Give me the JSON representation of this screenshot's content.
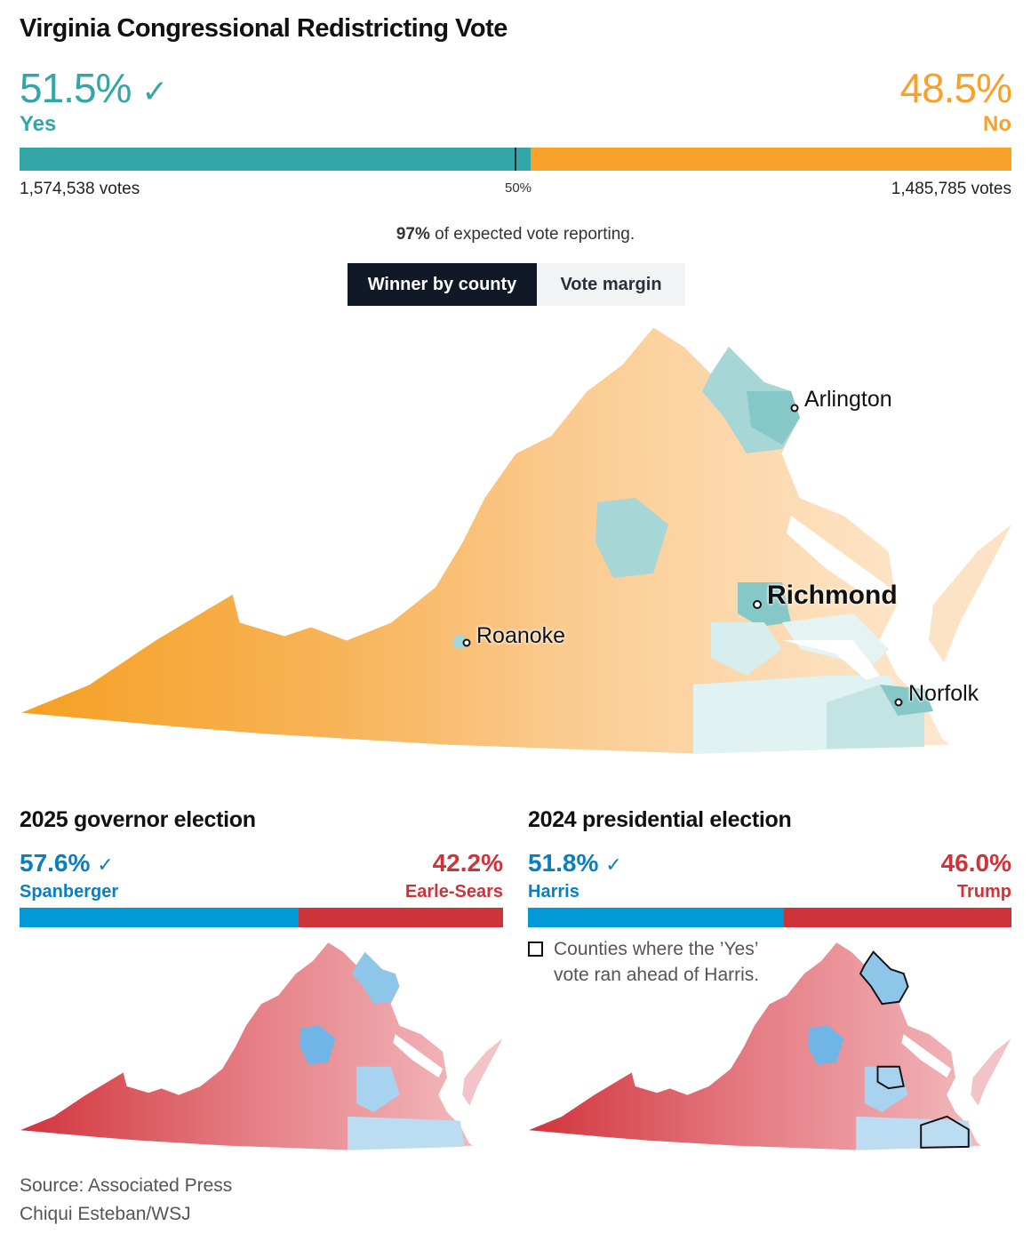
{
  "title": "Virginia Congressional Redistricting Vote",
  "yes": {
    "pct": "51.5%",
    "label": "Yes",
    "votes": "1,574,538 votes",
    "share": 51.5,
    "winner": true,
    "color": "#33a6a8"
  },
  "no": {
    "pct": "48.5%",
    "label": "No",
    "votes": "1,485,785 votes",
    "share": 48.5,
    "color": "#f7a12a"
  },
  "midpoint_label": "50%",
  "reporting": {
    "pct": "97%",
    "text": " of expected vote reporting."
  },
  "tabs": [
    {
      "label": "Winner by county",
      "active": true
    },
    {
      "label": "Vote margin",
      "active": false
    }
  ],
  "map": {
    "cities": [
      "Arlington",
      "Richmond",
      "Roanoke",
      "Norfolk"
    ]
  },
  "governor": {
    "title": "2025 governor election",
    "dem": {
      "pct": "57.6%",
      "name": "Spanberger",
      "share": 57.6,
      "winner": true,
      "color": "#0399d9"
    },
    "rep": {
      "pct": "42.2%",
      "name": "Earle-Sears",
      "share": 42.2,
      "color": "#cf333a"
    }
  },
  "president": {
    "title": "2024 presidential election",
    "dem": {
      "pct": "51.8%",
      "name": "Harris",
      "share": 51.8,
      "winner": true,
      "color": "#0399d9"
    },
    "rep": {
      "pct": "46.0%",
      "name": "Trump",
      "share": 46.0,
      "color": "#cf333a"
    },
    "legend": "Counties where the ’Yes’ vote ran ahead of Harris."
  },
  "source": "Source: Associated Press",
  "credit": "Chiqui Esteban/WSJ",
  "icons": {
    "winner": "check-icon"
  }
}
